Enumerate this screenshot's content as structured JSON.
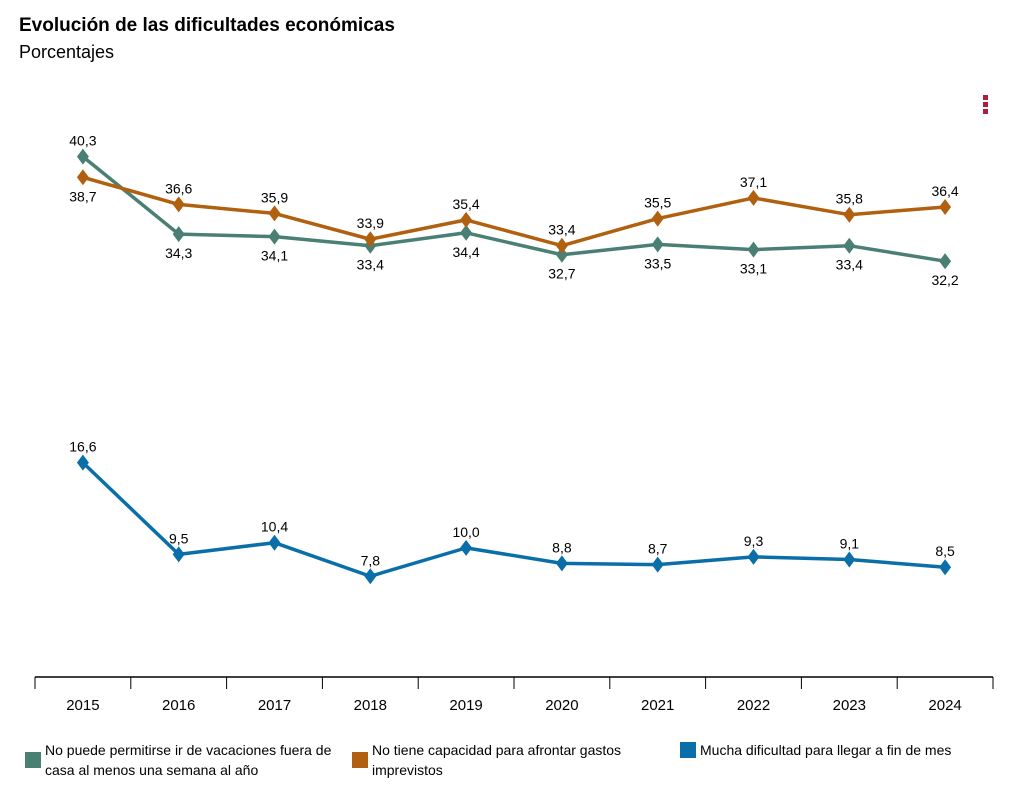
{
  "header": {
    "title": "Evolución de las dificultades económicas",
    "subtitle": "Porcentajes",
    "menu_icon": "kebab-menu-icon"
  },
  "chart_data": {
    "type": "line",
    "title": "Evolución de las dificultades económicas",
    "subtitle": "Porcentajes",
    "categories": [
      "2015",
      "2016",
      "2017",
      "2018",
      "2019",
      "2020",
      "2021",
      "2022",
      "2023",
      "2024"
    ],
    "ylim": [
      0,
      46
    ],
    "grid": false,
    "legend_placement": "bottom",
    "series": [
      {
        "name": "No puede permitirse ir de vacaciones fuera de casa al menos una semana al año",
        "color": "#4a7f74",
        "values": [
          40.3,
          34.3,
          34.1,
          33.4,
          34.4,
          32.7,
          33.5,
          33.1,
          33.4,
          32.2
        ],
        "labels": [
          "40,3",
          "34,3",
          "34,1",
          "33,4",
          "34,4",
          "32,7",
          "33,5",
          "33,1",
          "33,4",
          "32,2"
        ]
      },
      {
        "name": "No tiene capacidad para afrontar gastos imprevistos",
        "color": "#b0600f",
        "values": [
          38.7,
          36.6,
          35.9,
          33.9,
          35.4,
          33.4,
          35.5,
          37.1,
          35.8,
          36.4
        ],
        "labels": [
          "38,7",
          "36,6",
          "35,9",
          "33,9",
          "35,4",
          "33,4",
          "35,5",
          "37,1",
          "35,8",
          "36,4"
        ]
      },
      {
        "name": "Mucha dificultad para llegar a fin de mes",
        "color": "#0a6fa8",
        "values": [
          16.6,
          9.5,
          10.4,
          7.8,
          10.0,
          8.8,
          8.7,
          9.3,
          9.1,
          8.5
        ],
        "labels": [
          "16,6",
          "9,5",
          "10,4",
          "7,8",
          "10,0",
          "8,8",
          "8,7",
          "9,3",
          "9,1",
          "8,5"
        ]
      }
    ]
  }
}
